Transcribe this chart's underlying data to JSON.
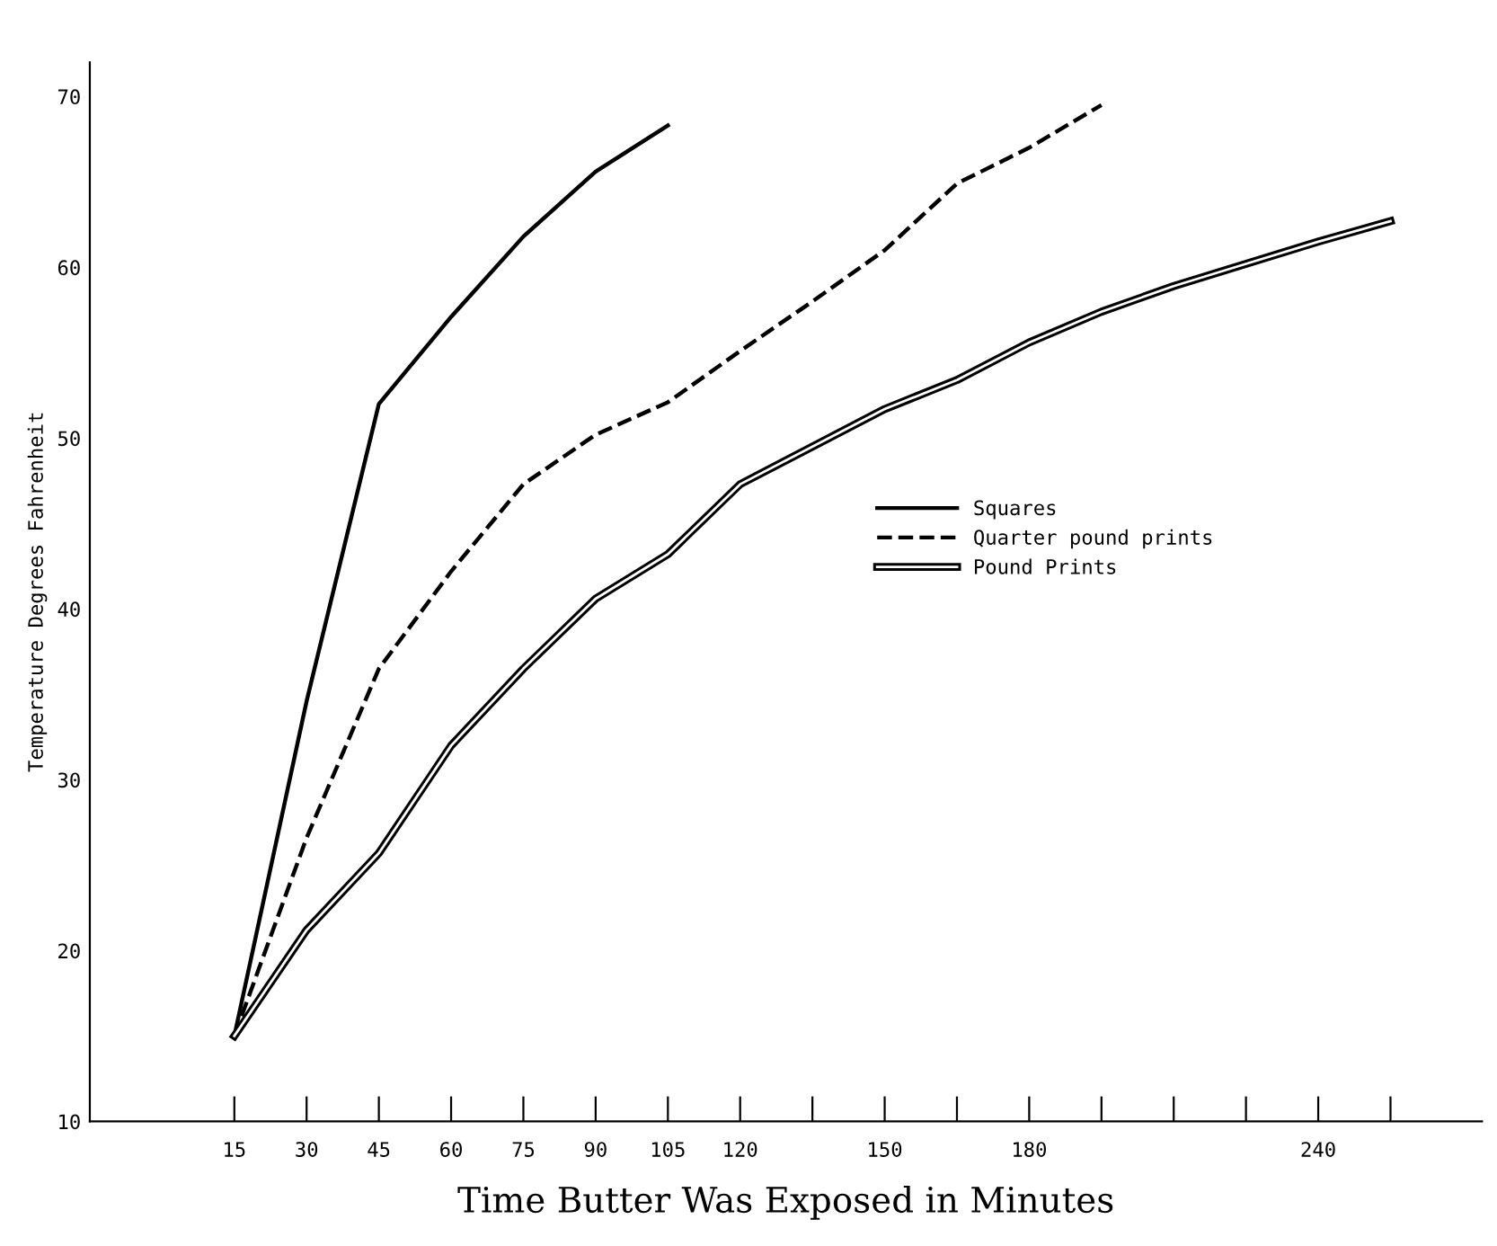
{
  "chart_data": {
    "type": "line",
    "xlabel": "Time Butter Was Exposed in Minutes",
    "ylabel": "Temperature Degrees Fahrenheit",
    "xlim": [
      -15,
      274
    ],
    "ylim": [
      10,
      72
    ],
    "xticks": [
      15,
      30,
      45,
      60,
      75,
      90,
      105,
      120,
      {
        "value": 135,
        "label": null
      },
      150,
      {
        "value": 165,
        "label": null
      },
      180,
      {
        "value": 195,
        "label": null
      },
      {
        "value": 210,
        "label": null
      },
      {
        "value": 225,
        "label": null
      },
      240,
      {
        "value": 255,
        "label": null
      }
    ],
    "yticks": [
      10,
      20,
      30,
      40,
      50,
      60,
      70
    ],
    "grid": false,
    "legend": "right",
    "marker": "none",
    "series": [
      {
        "name": "Squares",
        "color": "#000000",
        "line_style": "solid",
        "x": [
          15,
          30,
          45,
          60,
          75,
          90,
          105
        ],
        "values": [
          15,
          34.6,
          52,
          57.1,
          61.8,
          65.6,
          68.3
        ]
      },
      {
        "name": "Quarter pound prints",
        "color": "#000000",
        "line_style": "dashed",
        "x": [
          15,
          30,
          45,
          60,
          75,
          90,
          105,
          120,
          135,
          150,
          165,
          180,
          195
        ],
        "values": [
          15,
          26.6,
          36.5,
          42.2,
          47.3,
          50.2,
          52.1,
          55.1,
          58,
          61,
          64.9,
          67,
          69.5
        ]
      },
      {
        "name": "Pound Prints",
        "color": "#000000",
        "line_style": "solid",
        "x": [
          15,
          30,
          45,
          60,
          75,
          90,
          105,
          120,
          150,
          165,
          180,
          195,
          210,
          225,
          240,
          255
        ],
        "values": [
          15,
          21.2,
          25.7,
          32,
          36.5,
          40.6,
          43.2,
          47.3,
          51.7,
          53.4,
          55.6,
          57.4,
          58.9,
          60.2,
          61.5,
          62.7
        ]
      }
    ]
  }
}
